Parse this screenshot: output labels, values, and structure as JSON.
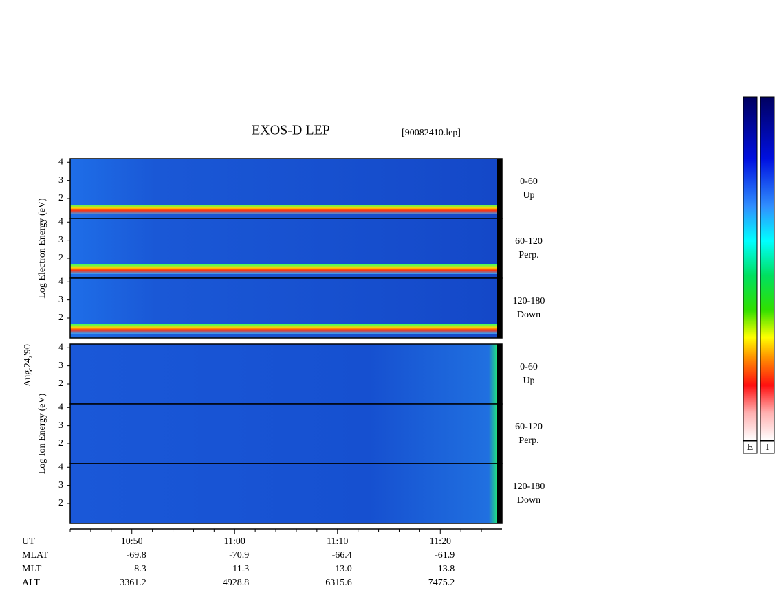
{
  "chart_data": {
    "type": "spectrogram",
    "title": "EXOS-D LEP",
    "file_label": "[90082410.lep]",
    "date_label": "Aug.24,'90",
    "groups": [
      {
        "ylabel": "Log Electron Energy (eV)",
        "particle": "electron",
        "panels": [
          {
            "angle": "0-60",
            "direction": "Up"
          },
          {
            "angle": "60-120",
            "direction": "Perp."
          },
          {
            "angle": "120-180",
            "direction": "Down"
          }
        ]
      },
      {
        "ylabel": "Log Ion Energy (eV)",
        "particle": "ion",
        "panels": [
          {
            "angle": "0-60",
            "direction": "Up"
          },
          {
            "angle": "60-120",
            "direction": "Perp."
          },
          {
            "angle": "120-180",
            "direction": "Down"
          }
        ]
      }
    ],
    "ylim": [
      0.9,
      4.2
    ],
    "yticks": [
      2,
      3,
      4
    ],
    "xlim": [
      "10:44",
      "11:26"
    ],
    "xticks": [
      "10:50",
      "11:00",
      "11:10",
      "11:20"
    ],
    "xminorticks": [
      "10:44",
      "10:46",
      "10:48",
      "10:52",
      "10:54",
      "10:56",
      "10:58",
      "11:02",
      "11:04",
      "11:06",
      "11:08",
      "11:12",
      "11:14",
      "11:16",
      "11:18",
      "11:22",
      "11:24"
    ],
    "xlabel": "UT",
    "ephemeris": [
      {
        "label": "MLAT",
        "values": [
          "-69.8",
          "-70.9",
          "-66.4",
          "-61.9"
        ]
      },
      {
        "label": "MLT",
        "values": [
          "8.3",
          "11.3",
          "13.0",
          "13.8"
        ]
      },
      {
        "label": "ALT",
        "values": [
          "3361.2",
          "4928.8",
          "6315.6",
          "7475.2"
        ]
      }
    ],
    "colorbars": [
      "E",
      "I"
    ]
  }
}
